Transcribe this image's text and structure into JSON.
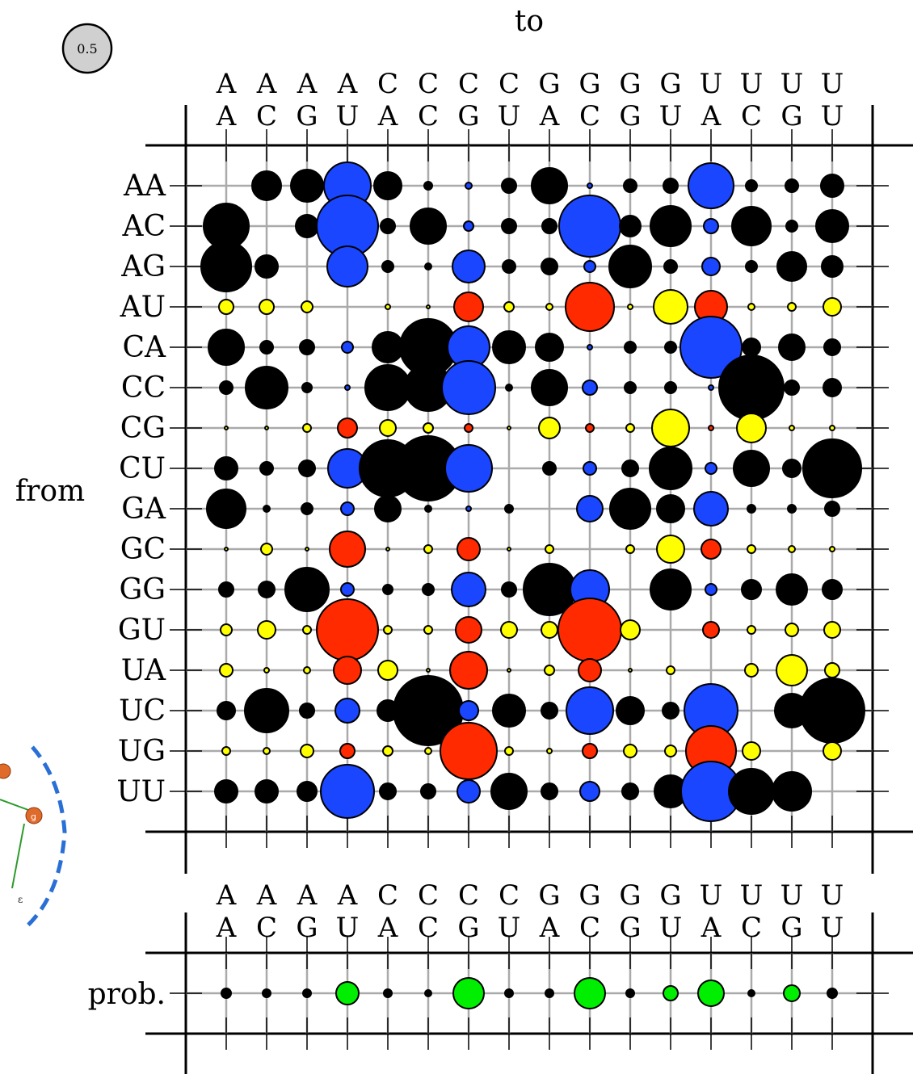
{
  "chart_data": {
    "type": "bubble-matrix",
    "top_title": "to",
    "side_title": "from",
    "scale_badge": "0.5",
    "col_top_letters": [
      "A",
      "A",
      "A",
      "A",
      "C",
      "C",
      "C",
      "C",
      "G",
      "G",
      "G",
      "G",
      "U",
      "U",
      "U",
      "U"
    ],
    "col_bottom_letters": [
      "A",
      "C",
      "G",
      "U",
      "A",
      "C",
      "G",
      "U",
      "A",
      "C",
      "G",
      "U",
      "A",
      "C",
      "G",
      "U"
    ],
    "row_labels": [
      "AA",
      "AC",
      "AG",
      "AU",
      "CA",
      "CC",
      "CG",
      "CU",
      "GA",
      "GC",
      "GG",
      "GU",
      "UA",
      "UC",
      "UG",
      "UU"
    ],
    "prob_label": "prob.",
    "colors": {
      "black": "#000000",
      "blue": "#1a46ff",
      "red": "#ff2a00",
      "yellow": "#ffff00",
      "green": "#00ee00",
      "grid": "#aaaaaa",
      "badge_fill": "#d0d0d0"
    },
    "row_colors": [
      "k",
      "k",
      "k",
      "y",
      "k",
      "k",
      "y",
      "k",
      "k",
      "y",
      "k",
      "y",
      "y",
      "k",
      "y",
      "k"
    ],
    "special_cols": [
      3,
      6,
      9,
      12
    ],
    "special_colors": {
      "k": "b",
      "y": "r"
    },
    "values": [
      [
        0,
        0.18,
        0.2,
        0.29,
        0.17,
        0.05,
        0.04,
        0.09,
        0.22,
        0.03,
        0.08,
        0.09,
        0.28,
        0.07,
        0.08,
        0.14
      ],
      [
        0.28,
        0.0,
        0.14,
        0.38,
        0.09,
        0.22,
        0.06,
        0.09,
        0.09,
        0.38,
        0.13,
        0.25,
        0.09,
        0.24,
        0.07,
        0.2
      ],
      [
        0.31,
        0.14,
        0.0,
        0.25,
        0.07,
        0.04,
        0.2,
        0.08,
        0.1,
        0.07,
        0.26,
        0.08,
        0.11,
        0.07,
        0.18,
        0.13
      ],
      [
        0.09,
        0.09,
        0.07,
        0,
        0.03,
        0.02,
        0.18,
        0.06,
        0.04,
        0.3,
        0.03,
        0.21,
        0.2,
        0.04,
        0.05,
        0.11
      ],
      [
        0.22,
        0.08,
        0.09,
        0.07,
        0.19,
        0.35,
        0.26,
        0.2,
        0.17,
        0.03,
        0.07,
        0.07,
        0.38,
        0.11,
        0.16,
        0.1
      ],
      [
        0.08,
        0.26,
        0.06,
        0.03,
        0.28,
        0.29,
        0.33,
        0.04,
        0.22,
        0.09,
        0.07,
        0.07,
        0.03,
        0.4,
        0.09,
        0.11
      ],
      [
        0.02,
        0.02,
        0.05,
        0.12,
        0.1,
        0.06,
        0.05,
        0.02,
        0.13,
        0.05,
        0.05,
        0.23,
        0.03,
        0.18,
        0.03,
        0.03
      ],
      [
        0.14,
        0.08,
        0.1,
        0.24,
        0.35,
        0.4,
        0.29,
        0.0,
        0.08,
        0.08,
        0.1,
        0.26,
        0.07,
        0.22,
        0.11,
        0.36
      ],
      [
        0.24,
        0.04,
        0.07,
        0.08,
        0.16,
        0.04,
        0.03,
        0.05,
        0.0,
        0.16,
        0.25,
        0.17,
        0.21,
        0.05,
        0.05,
        0.09
      ],
      [
        0.02,
        0.07,
        0.02,
        0.22,
        0.02,
        0.05,
        0.14,
        0.02,
        0.05,
        0.0,
        0.05,
        0.17,
        0.12,
        0.05,
        0.04,
        0.03
      ],
      [
        0.09,
        0.1,
        0.27,
        0.08,
        0.06,
        0.07,
        0.21,
        0.09,
        0.32,
        0.24,
        0.0,
        0.25,
        0.07,
        0.12,
        0.19,
        0.12
      ],
      [
        0.07,
        0.11,
        0.05,
        0.38,
        0.05,
        0.05,
        0.16,
        0.1,
        0.1,
        0.39,
        0.12,
        0.0,
        0.1,
        0.05,
        0.08,
        0.1
      ],
      [
        0.08,
        0.03,
        0.04,
        0.17,
        0.12,
        0.02,
        0.23,
        0.02,
        0.06,
        0.14,
        0.02,
        0.05,
        0.0,
        0.08,
        0.19,
        0.09
      ],
      [
        0.11,
        0.27,
        0.09,
        0.15,
        0.13,
        0.43,
        0.12,
        0.2,
        0.1,
        0.29,
        0.17,
        0.1,
        0.33,
        0.0,
        0.21,
        0.4
      ],
      [
        0.05,
        0.04,
        0.08,
        0.09,
        0.06,
        0.04,
        0.35,
        0.05,
        0.03,
        0.09,
        0.08,
        0.07,
        0.31,
        0.11,
        0.0,
        0.11
      ],
      [
        0.14,
        0.14,
        0.12,
        0.33,
        0.1,
        0.09,
        0.14,
        0.22,
        0.1,
        0.12,
        0.1,
        0.2,
        0.37,
        0.28,
        0.24,
        0.0
      ]
    ],
    "prob_values": [
      0.06,
      0.05,
      0.05,
      0.14,
      0.05,
      0.04,
      0.19,
      0.05,
      0.05,
      0.19,
      0.05,
      0.09,
      0.16,
      0.04,
      0.1,
      0.06
    ],
    "prob_colors": [
      "k",
      "k",
      "k",
      "g",
      "k",
      "k",
      "g",
      "k",
      "k",
      "g",
      "k",
      "g",
      "g",
      "k",
      "g",
      "k"
    ]
  }
}
